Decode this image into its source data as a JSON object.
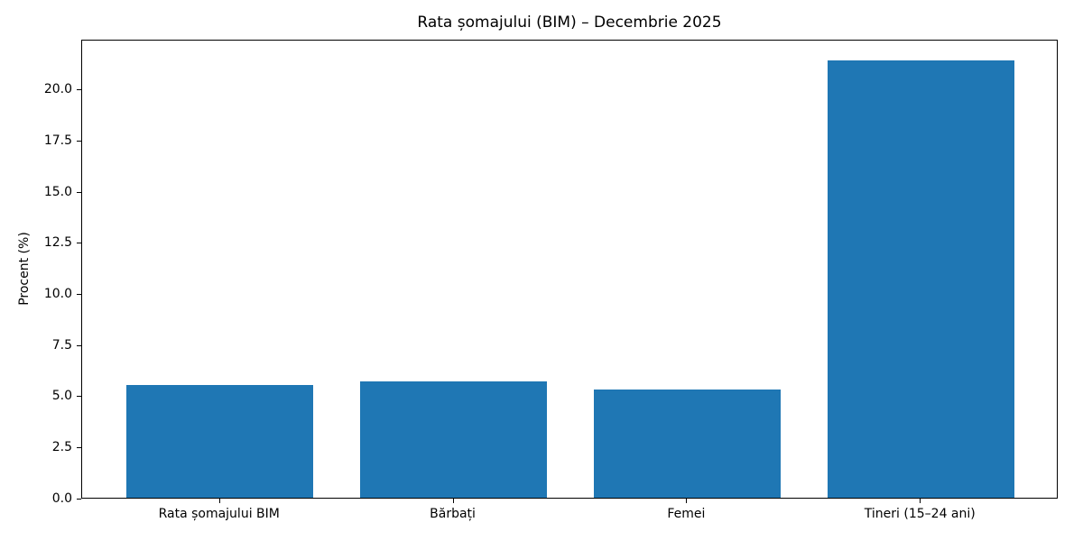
{
  "chart_data": {
    "type": "bar",
    "title": "Rata șomajului (BIM) – Decembrie 2025",
    "xlabel": "",
    "ylabel": "Procent (%)",
    "categories": [
      "Rata șomajului BIM",
      "Bărbați",
      "Femei",
      "Tineri (15–24 ani)"
    ],
    "values": [
      5.5,
      5.7,
      5.3,
      21.4
    ],
    "bar_color": "#1f77b4",
    "yticks": [
      0.0,
      2.5,
      5.0,
      7.5,
      10.0,
      12.5,
      15.0,
      17.5,
      20.0
    ],
    "ytick_decimals": 1,
    "ylim": [
      0,
      22.47
    ],
    "xlim": [
      -0.59,
      3.59
    ],
    "bar_width": 0.8,
    "grid": false,
    "legend": "none",
    "background_color": "#ffffff",
    "text_color": "#000000"
  }
}
